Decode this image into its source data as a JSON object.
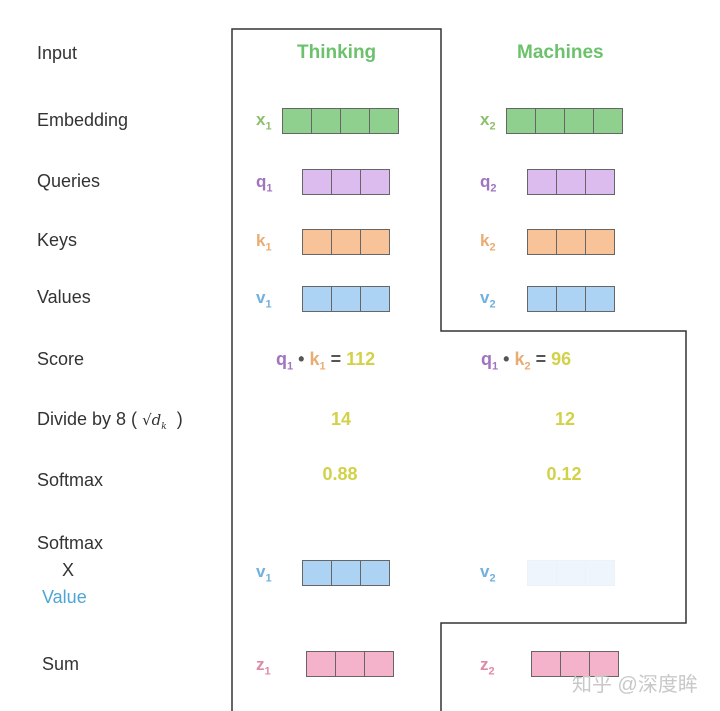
{
  "row_labels": {
    "input": "Input",
    "embedding": "Embedding",
    "queries": "Queries",
    "keys": "Keys",
    "values": "Values",
    "score": "Score",
    "divide": "Divide by 8 (",
    "divide_sqrt": "√d",
    "divide_sub": "k",
    "divide_close": ")",
    "softmax": "Softmax",
    "sv1": "Softmax",
    "sv2": "X",
    "sv3": "Value",
    "sum": "Sum"
  },
  "words": [
    "Thinking",
    "Machines"
  ],
  "vectors": {
    "x1": "x",
    "x2": "x",
    "q": "q",
    "k": "k",
    "v": "v",
    "z": "z",
    "i1": "1",
    "i2": "2"
  },
  "score": {
    "dot": "•",
    "eq": "=",
    "s1": "112",
    "s2": "96"
  },
  "divided": [
    "14",
    "12"
  ],
  "softmax": [
    "0.88",
    "0.12"
  ],
  "watermark": "知乎 @深度眸",
  "colors": {
    "embedding": "#8fd08f",
    "query": "#dcbcef",
    "key": "#f9c39a",
    "value": "#acd3f4",
    "sum": "#f4b3cb",
    "number": "#d2d24a",
    "header": "#6cc16c"
  }
}
